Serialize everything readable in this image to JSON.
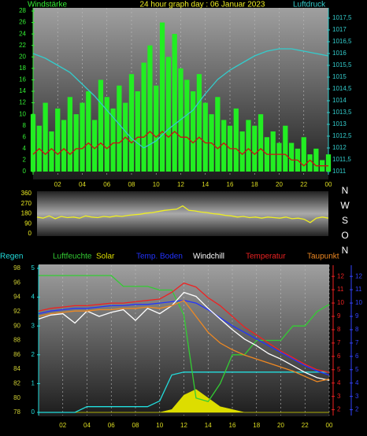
{
  "chart_data": [
    {
      "type": "line",
      "title": "24 hour graph day : 06 Januar 2023",
      "ylabel": "Windstärke",
      "y2label": "Luftdruck",
      "x": [
        0,
        0.5,
        1,
        1.5,
        2,
        2.5,
        3,
        3.5,
        4,
        4.5,
        5,
        5.5,
        6,
        6.5,
        7,
        7.5,
        8,
        8.5,
        9,
        9.5,
        10,
        10.5,
        11,
        11.5,
        12,
        12.5,
        13,
        13.5,
        14,
        14.5,
        15,
        15.5,
        16,
        16.5,
        17,
        17.5,
        18,
        18.5,
        19,
        19.5,
        20,
        20.5,
        21,
        21.5,
        22,
        22.5,
        23,
        23.5,
        24
      ],
      "xlim": [
        0,
        24
      ],
      "xticks": [
        {
          "value": 2,
          "label": "02"
        },
        {
          "value": 4,
          "label": "04"
        },
        {
          "value": 6,
          "label": "06"
        },
        {
          "value": 8,
          "label": "08"
        },
        10,
        12,
        14,
        16,
        18,
        20,
        22,
        {
          "value": 24,
          "label": "00"
        }
      ],
      "ylim": [
        0,
        28
      ],
      "yticks": [
        0,
        2,
        4,
        6,
        8,
        10,
        12,
        14,
        16,
        18,
        20,
        22,
        24,
        26,
        28
      ],
      "y2lim": [
        1011,
        1017.8
      ],
      "y2ticks": [
        1011,
        {
          "value": 1011.5,
          "label": "1011,5"
        },
        1012,
        {
          "value": 1012.5,
          "label": "1012,5"
        },
        1013,
        {
          "value": 1013.5,
          "label": "1013,5"
        },
        1014,
        {
          "value": 1014.5,
          "label": "1014,5"
        },
        1015,
        {
          "value": 1015.5,
          "label": "1015,5"
        },
        1016,
        {
          "value": 1016.5,
          "label": "1016,5"
        },
        1017,
        {
          "value": 1017.5,
          "label": "1017,5"
        }
      ],
      "grid": true,
      "series": [
        {
          "type": "bar",
          "color": "#22ee22",
          "axis": "y",
          "values": [
            10,
            8,
            12,
            7,
            11,
            9,
            13,
            10,
            12,
            14,
            9,
            16,
            13,
            11,
            15,
            12,
            17,
            14,
            19,
            22,
            15,
            26,
            20,
            24,
            18,
            16,
            14,
            17,
            12,
            10,
            13,
            9,
            8,
            11,
            7,
            9,
            8,
            10,
            6,
            7,
            5,
            8,
            5,
            4,
            6,
            3,
            4,
            2,
            3
          ]
        },
        {
          "color": "#cc1111",
          "axis": "y",
          "values": [
            3,
            4,
            3,
            4,
            3,
            4,
            3,
            4,
            4,
            5,
            4,
            5,
            4,
            5,
            5,
            6,
            5,
            6,
            6,
            7,
            6,
            7,
            6,
            7,
            6,
            6,
            5,
            6,
            5,
            5,
            4,
            5,
            4,
            4,
            3,
            4,
            3,
            4,
            3,
            3,
            3,
            3,
            2,
            2,
            1,
            2,
            1,
            1,
            1
          ]
        },
        {
          "color": "#33cccc",
          "axis": "y2",
          "values": [
            1016.0,
            1015.9,
            1015.8,
            1015.65,
            1015.5,
            1015.35,
            1015.2,
            1014.95,
            1014.7,
            1014.45,
            1014.2,
            1013.9,
            1013.6,
            1013.3,
            1013.0,
            1012.7,
            1012.4,
            1012.2,
            1012.0,
            1012.15,
            1012.3,
            1012.55,
            1012.8,
            1013.0,
            1013.2,
            1013.4,
            1013.6,
            1013.95,
            1014.3,
            1014.6,
            1014.9,
            1015.1,
            1015.3,
            1015.45,
            1015.6,
            1015.75,
            1015.9,
            1016.0,
            1016.1,
            1016.15,
            1016.2,
            1016.2,
            1016.2,
            1016.15,
            1016.1,
            1016.05,
            1016.0,
            1015.95,
            1015.9
          ]
        }
      ]
    },
    {
      "type": "line",
      "compass_labels": [
        "N",
        "W",
        "S",
        "O",
        "N"
      ],
      "x": [
        0,
        0.5,
        1,
        1.5,
        2,
        2.5,
        3,
        3.5,
        4,
        4.5,
        5,
        5.5,
        6,
        6.5,
        7,
        7.5,
        8,
        8.5,
        9,
        9.5,
        10,
        10.5,
        11,
        11.5,
        12,
        12.5,
        13,
        13.5,
        14,
        14.5,
        15,
        15.5,
        16,
        16.5,
        17,
        17.5,
        18,
        18.5,
        19,
        19.5,
        20,
        20.5,
        21,
        21.5,
        22,
        22.5,
        23,
        23.5,
        24
      ],
      "xlim": [
        0,
        24
      ],
      "ylim": [
        0,
        360
      ],
      "yticks": [
        0,
        90,
        180,
        270,
        360
      ],
      "series": [
        {
          "color": "#eeee22",
          "axis": "y",
          "values": [
            150,
            140,
            160,
            135,
            155,
            145,
            150,
            140,
            160,
            150,
            145,
            155,
            150,
            160,
            155,
            165,
            170,
            175,
            185,
            190,
            200,
            210,
            215,
            220,
            250,
            210,
            205,
            195,
            190,
            180,
            175,
            165,
            160,
            150,
            155,
            145,
            150,
            140,
            150,
            145,
            140,
            150,
            135,
            140,
            130,
            100,
            140,
            150,
            140
          ]
        }
      ]
    },
    {
      "type": "line",
      "x": [
        0,
        1,
        2,
        3,
        4,
        5,
        6,
        7,
        8,
        9,
        10,
        11,
        12,
        13,
        14,
        15,
        16,
        17,
        18,
        19,
        20,
        21,
        22,
        23,
        24
      ],
      "xlim": [
        0,
        24
      ],
      "xticks": [
        {
          "value": 2,
          "label": "02"
        },
        {
          "value": 4,
          "label": "04"
        },
        {
          "value": 6,
          "label": "06"
        },
        {
          "value": 8,
          "label": "08"
        },
        10,
        12,
        14,
        16,
        18,
        20,
        22,
        {
          "value": 24,
          "label": "00"
        }
      ],
      "ylim": [
        78,
        98
      ],
      "yticks": [
        78,
        80,
        82,
        84,
        86,
        88,
        90,
        92,
        94,
        96,
        98
      ],
      "y2lim": [
        1.8,
        12.6
      ],
      "y2ticks": [
        2,
        3,
        4,
        5,
        6,
        7,
        8,
        9,
        10,
        11,
        12
      ],
      "y3lim": [
        0,
        5
      ],
      "y3ticks": [
        0,
        1,
        2,
        3,
        4,
        5
      ],
      "y4lim": [
        1.8,
        12.6
      ],
      "y4ticks": [
        2,
        3,
        4,
        5,
        6,
        7,
        8,
        9,
        10,
        11,
        12
      ],
      "grid": true,
      "series": [
        {
          "name": "Solar",
          "type": "area",
          "color": "#dddd00",
          "axis": "y3",
          "values": [
            0,
            0,
            0,
            0,
            0,
            0,
            0,
            0,
            0,
            0,
            0,
            0.1,
            0.6,
            0.8,
            0.5,
            0.2,
            0.1,
            0,
            0,
            0,
            0,
            0,
            0,
            0,
            0
          ]
        },
        {
          "name": "Regen",
          "color": "#22dddd",
          "axis": "y3",
          "values": [
            0,
            0,
            0,
            0,
            0.2,
            0.2,
            0.2,
            0.2,
            0.2,
            0.2,
            0.4,
            1.3,
            1.4,
            1.4,
            1.4,
            1.4,
            1.4,
            1.4,
            1.4,
            1.4,
            1.4,
            1.4,
            1.4,
            1.4,
            1.4
          ]
        },
        {
          "name": "Luftfeuchte",
          "color": "#33cc33",
          "axis": "y",
          "values": [
            97,
            97,
            97,
            97,
            97,
            97,
            97,
            95.5,
            95.5,
            95.5,
            95,
            95,
            91.5,
            80,
            79.5,
            82,
            86,
            86,
            88,
            88,
            88,
            90,
            90,
            92,
            93
          ]
        },
        {
          "name": "Temp. Boden",
          "color": "#2233ff",
          "axis": "y4",
          "values": [
            9.2,
            9.4,
            9.5,
            9.6,
            9.6,
            9.7,
            9.8,
            9.8,
            9.9,
            9.9,
            10.0,
            10.1,
            10.2,
            10.0,
            9.5,
            8.9,
            8.3,
            7.8,
            7.3,
            6.8,
            6.3,
            5.8,
            5.3,
            4.9,
            4.6
          ]
        },
        {
          "name": "Windchill",
          "color": "#ffffff",
          "axis": "y2",
          "values": [
            8.8,
            9.1,
            9.2,
            8.5,
            9.4,
            9.0,
            9.3,
            9.5,
            8.7,
            9.6,
            9.2,
            9.8,
            10.8,
            10.5,
            9.6,
            8.8,
            8.0,
            7.3,
            6.8,
            6.2,
            5.8,
            5.3,
            4.8,
            4.4,
            4.2
          ]
        },
        {
          "name": "Temperatur",
          "color": "#ee2222",
          "axis": "y2",
          "values": [
            9.4,
            9.6,
            9.7,
            9.8,
            9.8,
            9.9,
            10.0,
            10.0,
            10.1,
            10.2,
            10.3,
            10.8,
            11.5,
            11.2,
            10.4,
            9.8,
            9.0,
            8.2,
            7.6,
            7.0,
            6.4,
            5.9,
            5.4,
            5.0,
            4.8
          ]
        },
        {
          "name": "Taupunkt",
          "color": "#ee8822",
          "axis": "y2",
          "values": [
            9.0,
            9.2,
            9.3,
            9.4,
            9.4,
            9.5,
            9.5,
            9.6,
            9.6,
            9.7,
            9.6,
            9.8,
            10.2,
            9.0,
            7.8,
            7.0,
            6.5,
            6.1,
            5.8,
            5.5,
            5.2,
            4.9,
            4.5,
            4.1,
            4.3
          ]
        }
      ]
    }
  ]
}
